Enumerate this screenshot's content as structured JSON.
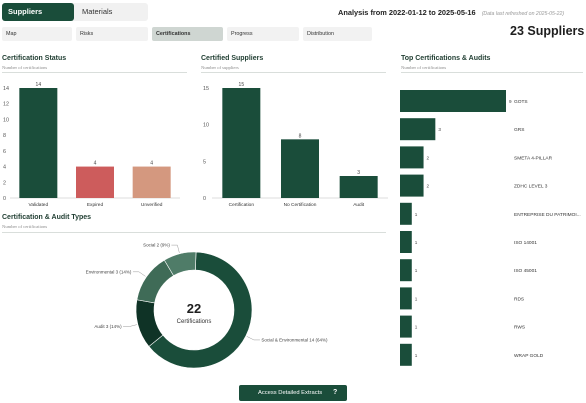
{
  "top_tabs": [
    {
      "label": "Suppliers",
      "active": true
    },
    {
      "label": "Materials",
      "active": false
    }
  ],
  "analysis": {
    "text": "Analysis from 2022-01-12 to 2025-05-16",
    "refresh": "(Data last refreshed on 2025-05-22)"
  },
  "sub_tabs": [
    {
      "label": "Map",
      "active": false
    },
    {
      "label": "Risks",
      "active": false
    },
    {
      "label": "Certifications",
      "active": true
    },
    {
      "label": "Progress",
      "active": false
    },
    {
      "label": "Distribution",
      "active": false
    }
  ],
  "supplier_count": "23 Suppliers",
  "colors": {
    "dark_green": "#1a4d3a",
    "red": "#cd5c5c",
    "salmon": "#d4987f",
    "mid_green": "#3f6b57",
    "deep_green": "#0f3326"
  },
  "panels": {
    "cert_status": {
      "title": "Certification Status",
      "subtitle": "Number of certifications"
    },
    "cert_suppliers": {
      "title": "Certified Suppliers",
      "subtitle": "Number of suppliers"
    },
    "top_certs": {
      "title": "Top Certifications & Audits",
      "subtitle": "Number of certifications"
    },
    "types": {
      "title": "Certification & Audit Types",
      "subtitle": "Number of certifications"
    }
  },
  "chart_data": [
    {
      "id": "status",
      "type": "bar",
      "categories": [
        "Validated",
        "Expired",
        "Unverified"
      ],
      "values": [
        14,
        4,
        4
      ],
      "colors": [
        "#1a4d3a",
        "#cd5c5c",
        "#d4987f"
      ],
      "ylim": [
        0,
        14
      ],
      "yticks": [
        0,
        2,
        4,
        6,
        8,
        10,
        12,
        14
      ]
    },
    {
      "id": "suppliers",
      "type": "bar",
      "categories": [
        "Certification",
        "No Certification",
        "Audit"
      ],
      "values": [
        15,
        8,
        3
      ],
      "colors": [
        "#1a4d3a",
        "#1a4d3a",
        "#1a4d3a"
      ],
      "ylim": [
        0,
        15
      ],
      "yticks": [
        0,
        5,
        10,
        15
      ]
    },
    {
      "id": "top",
      "type": "bar",
      "orientation": "horizontal",
      "categories": [
        "GOTS",
        "GRS",
        "SMETA 4-PILLAR",
        "ZDHC LEVEL 3",
        "ENTREPRISE DU PATRIMOI...",
        "ISO 14001",
        "ISO 45001",
        "RDS",
        "RWS",
        "WRAP GOLD"
      ],
      "values": [
        9,
        3,
        2,
        2,
        1,
        1,
        1,
        1,
        1,
        1
      ]
    },
    {
      "id": "types",
      "type": "pie",
      "center_value": "22",
      "center_label": "Certifications",
      "slices": [
        {
          "label": "Social & Environmental 14 (64%)",
          "value": 14,
          "color": "#1a4d3a"
        },
        {
          "label": "Audit 3 (14%)",
          "value": 3,
          "color": "#0f3326"
        },
        {
          "label": "Environmental 3 (14%)",
          "value": 3,
          "color": "#3f6b57"
        },
        {
          "label": "Social 2 (9%)",
          "value": 2,
          "color": "#4f7c68"
        }
      ]
    }
  ],
  "button": {
    "label": "Access Detailed Extracts",
    "help": "?"
  }
}
